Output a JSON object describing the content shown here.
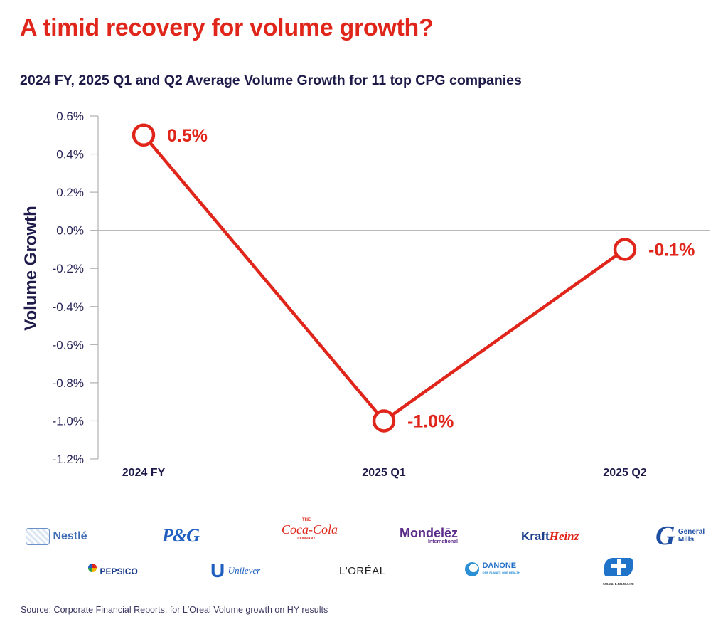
{
  "header": {
    "title": "A timid recovery for volume growth?",
    "subtitle": "2024 FY, 2025 Q1 and Q2 Average Volume Growth for 11 top CPG companies"
  },
  "colors": {
    "accent": "#e0251b",
    "text_dark": "#1e1a4a",
    "axis": "#b0b0b0"
  },
  "chart_data": {
    "type": "line",
    "title": "2024 FY, 2025 Q1 and Q2 Average Volume Growth for 11 top CPG companies",
    "xlabel": "",
    "ylabel": "Volume Growth",
    "categories": [
      "2024 FY",
      "2025 Q1",
      "2025 Q2"
    ],
    "series": [
      {
        "name": "Average Volume Growth",
        "values": [
          0.5,
          -1.0,
          -0.1
        ],
        "labels": [
          "0.5%",
          "-1.0%",
          "-0.1%"
        ]
      }
    ],
    "ylim": [
      -1.2,
      0.6
    ],
    "yticks": [
      0.6,
      0.4,
      0.2,
      0.0,
      -0.2,
      -0.4,
      -0.6,
      -0.8,
      -1.0,
      -1.2
    ],
    "ytick_labels": [
      "0.6%",
      "0.4%",
      "0.2%",
      "0.0%",
      "-0.2%",
      "-0.4%",
      "-0.6%",
      "-0.8%",
      "-1.0%",
      "-1.2%"
    ],
    "grid": false,
    "zero_line": true,
    "legend": "none"
  },
  "logos": {
    "row1": [
      {
        "name": "nestle",
        "text": "Nestlé"
      },
      {
        "name": "pg",
        "text": "P&G"
      },
      {
        "name": "coca-cola",
        "text_top": "THE",
        "text": "Coca-Cola",
        "text_bottom": "COMPANY"
      },
      {
        "name": "mondelez",
        "text": "Mondelēz",
        "text_bottom": "International"
      },
      {
        "name": "kraft-heinz",
        "text": "Kraft",
        "text2": "Heinz"
      },
      {
        "name": "general-mills",
        "text": "General",
        "text2": "Mills"
      }
    ],
    "row2": [
      {
        "name": "pepsico",
        "text": "PEPSICO"
      },
      {
        "name": "unilever",
        "text": "Unilever"
      },
      {
        "name": "loreal",
        "text": "L'ORÉAL"
      },
      {
        "name": "danone",
        "text": "DANONE",
        "text_bottom": "ONE PLANET. ONE HEALTH"
      },
      {
        "name": "colgate-palmolive",
        "text_bottom": "COLGATE-PALMOLIVE"
      }
    ]
  },
  "footer": {
    "source": "Source: Corporate Financial Reports, for L'Oreal Volume growth on HY results"
  }
}
